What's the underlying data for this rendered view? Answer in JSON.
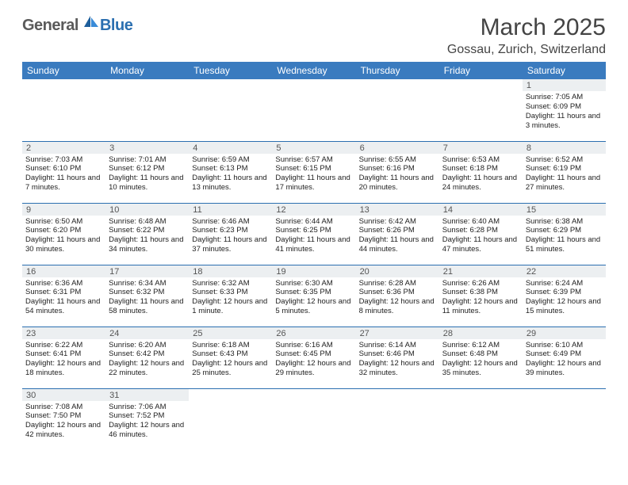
{
  "brand": {
    "part1": "General",
    "part2": "Blue"
  },
  "title": "March 2025",
  "location": "Gossau, Zurich, Switzerland",
  "colors": {
    "header_bg": "#3a7bbf",
    "border": "#2b6fb0",
    "daynum_bg": "#eceff1",
    "brand_gray": "#5a5a5a",
    "brand_blue": "#2b6fb0"
  },
  "weekdays": [
    "Sunday",
    "Monday",
    "Tuesday",
    "Wednesday",
    "Thursday",
    "Friday",
    "Saturday"
  ],
  "weeks": [
    [
      null,
      null,
      null,
      null,
      null,
      null,
      {
        "n": "1",
        "sr": "7:05 AM",
        "ss": "6:09 PM",
        "dl": "11 hours and 3 minutes."
      }
    ],
    [
      {
        "n": "2",
        "sr": "7:03 AM",
        "ss": "6:10 PM",
        "dl": "11 hours and 7 minutes."
      },
      {
        "n": "3",
        "sr": "7:01 AM",
        "ss": "6:12 PM",
        "dl": "11 hours and 10 minutes."
      },
      {
        "n": "4",
        "sr": "6:59 AM",
        "ss": "6:13 PM",
        "dl": "11 hours and 13 minutes."
      },
      {
        "n": "5",
        "sr": "6:57 AM",
        "ss": "6:15 PM",
        "dl": "11 hours and 17 minutes."
      },
      {
        "n": "6",
        "sr": "6:55 AM",
        "ss": "6:16 PM",
        "dl": "11 hours and 20 minutes."
      },
      {
        "n": "7",
        "sr": "6:53 AM",
        "ss": "6:18 PM",
        "dl": "11 hours and 24 minutes."
      },
      {
        "n": "8",
        "sr": "6:52 AM",
        "ss": "6:19 PM",
        "dl": "11 hours and 27 minutes."
      }
    ],
    [
      {
        "n": "9",
        "sr": "6:50 AM",
        "ss": "6:20 PM",
        "dl": "11 hours and 30 minutes."
      },
      {
        "n": "10",
        "sr": "6:48 AM",
        "ss": "6:22 PM",
        "dl": "11 hours and 34 minutes."
      },
      {
        "n": "11",
        "sr": "6:46 AM",
        "ss": "6:23 PM",
        "dl": "11 hours and 37 minutes."
      },
      {
        "n": "12",
        "sr": "6:44 AM",
        "ss": "6:25 PM",
        "dl": "11 hours and 41 minutes."
      },
      {
        "n": "13",
        "sr": "6:42 AM",
        "ss": "6:26 PM",
        "dl": "11 hours and 44 minutes."
      },
      {
        "n": "14",
        "sr": "6:40 AM",
        "ss": "6:28 PM",
        "dl": "11 hours and 47 minutes."
      },
      {
        "n": "15",
        "sr": "6:38 AM",
        "ss": "6:29 PM",
        "dl": "11 hours and 51 minutes."
      }
    ],
    [
      {
        "n": "16",
        "sr": "6:36 AM",
        "ss": "6:31 PM",
        "dl": "11 hours and 54 minutes."
      },
      {
        "n": "17",
        "sr": "6:34 AM",
        "ss": "6:32 PM",
        "dl": "11 hours and 58 minutes."
      },
      {
        "n": "18",
        "sr": "6:32 AM",
        "ss": "6:33 PM",
        "dl": "12 hours and 1 minute."
      },
      {
        "n": "19",
        "sr": "6:30 AM",
        "ss": "6:35 PM",
        "dl": "12 hours and 5 minutes."
      },
      {
        "n": "20",
        "sr": "6:28 AM",
        "ss": "6:36 PM",
        "dl": "12 hours and 8 minutes."
      },
      {
        "n": "21",
        "sr": "6:26 AM",
        "ss": "6:38 PM",
        "dl": "12 hours and 11 minutes."
      },
      {
        "n": "22",
        "sr": "6:24 AM",
        "ss": "6:39 PM",
        "dl": "12 hours and 15 minutes."
      }
    ],
    [
      {
        "n": "23",
        "sr": "6:22 AM",
        "ss": "6:41 PM",
        "dl": "12 hours and 18 minutes."
      },
      {
        "n": "24",
        "sr": "6:20 AM",
        "ss": "6:42 PM",
        "dl": "12 hours and 22 minutes."
      },
      {
        "n": "25",
        "sr": "6:18 AM",
        "ss": "6:43 PM",
        "dl": "12 hours and 25 minutes."
      },
      {
        "n": "26",
        "sr": "6:16 AM",
        "ss": "6:45 PM",
        "dl": "12 hours and 29 minutes."
      },
      {
        "n": "27",
        "sr": "6:14 AM",
        "ss": "6:46 PM",
        "dl": "12 hours and 32 minutes."
      },
      {
        "n": "28",
        "sr": "6:12 AM",
        "ss": "6:48 PM",
        "dl": "12 hours and 35 minutes."
      },
      {
        "n": "29",
        "sr": "6:10 AM",
        "ss": "6:49 PM",
        "dl": "12 hours and 39 minutes."
      }
    ],
    [
      {
        "n": "30",
        "sr": "7:08 AM",
        "ss": "7:50 PM",
        "dl": "12 hours and 42 minutes."
      },
      {
        "n": "31",
        "sr": "7:06 AM",
        "ss": "7:52 PM",
        "dl": "12 hours and 46 minutes."
      },
      null,
      null,
      null,
      null,
      null
    ]
  ],
  "labels": {
    "sunrise": "Sunrise:",
    "sunset": "Sunset:",
    "daylight": "Daylight:"
  }
}
